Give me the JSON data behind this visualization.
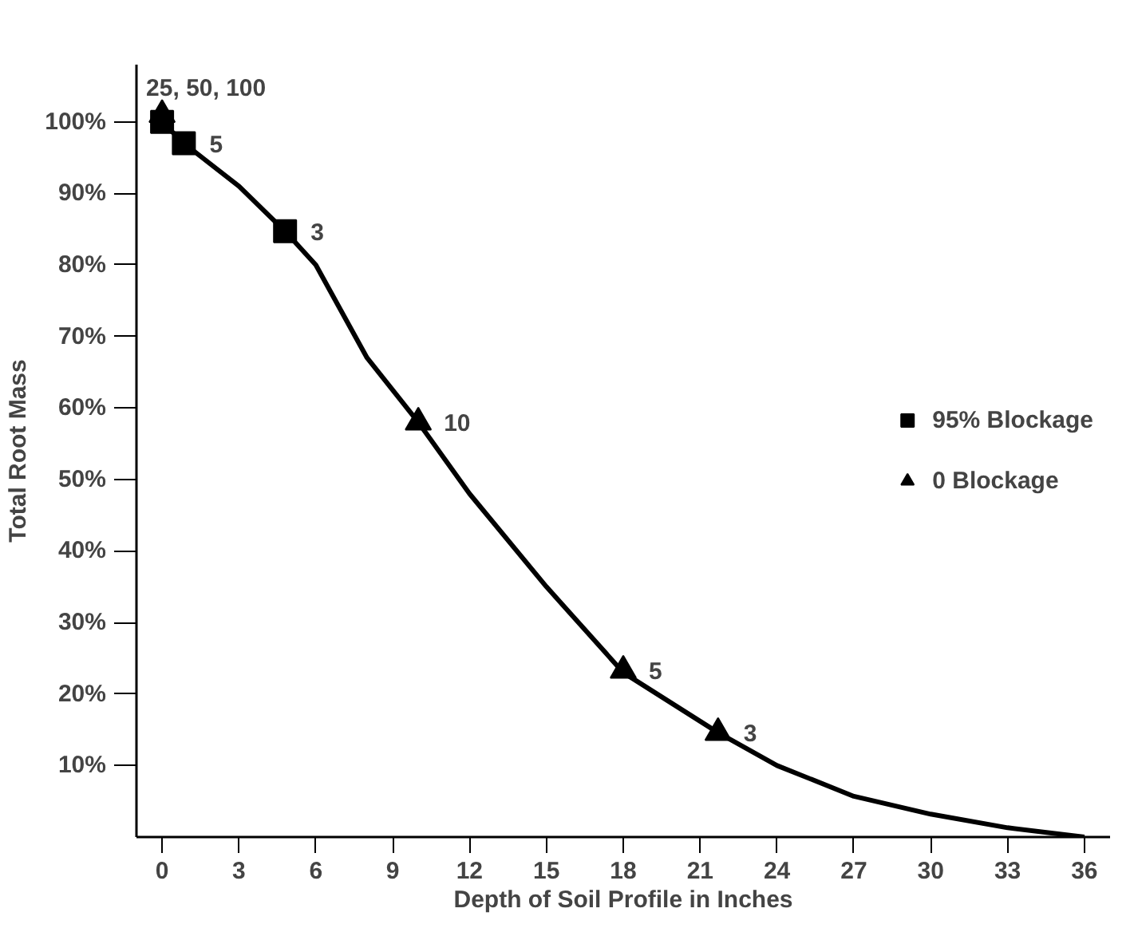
{
  "chart_data": {
    "type": "line",
    "xlabel": "Depth of Soil Profile in Inches",
    "ylabel": "Total Root Mass",
    "xlim": [
      -1,
      37
    ],
    "ylim": [
      0,
      108
    ],
    "xticks": [
      0,
      3,
      6,
      9,
      12,
      15,
      18,
      21,
      24,
      27,
      30,
      33,
      36
    ],
    "yticks": [
      {
        "value": 10,
        "label": "10%"
      },
      {
        "value": 20,
        "label": "20%"
      },
      {
        "value": 30,
        "label": "30%"
      },
      {
        "value": 40,
        "label": "40%"
      },
      {
        "value": 50,
        "label": "50%"
      },
      {
        "value": 60,
        "label": "60%"
      },
      {
        "value": 70,
        "label": "70%"
      },
      {
        "value": 80,
        "label": "80%"
      },
      {
        "value": 90,
        "label": "90%"
      },
      {
        "value": 100,
        "label": "100%"
      }
    ],
    "grid": false,
    "legend": "right",
    "series": [
      {
        "color": "#000000",
        "marker": "none",
        "line_style": "solid",
        "x": [
          0,
          0.85,
          3,
          4.8,
          6,
          8,
          10,
          12,
          15,
          18,
          21.7,
          24,
          27,
          30,
          33,
          36
        ],
        "values": [
          100,
          97,
          91,
          84.7,
          80,
          67,
          58,
          48,
          35,
          23,
          14.6,
          10,
          5.7,
          3.2,
          1.3,
          0
        ]
      },
      {
        "type": "scatter",
        "name": "95% Blockage",
        "color": "#000000",
        "marker": "square",
        "x": [
          0,
          0.85,
          4.8
        ],
        "values": [
          100,
          97,
          84.7
        ]
      },
      {
        "type": "scatter",
        "name": "0 Blockage",
        "color": "#000000",
        "marker": "triangle",
        "x": [
          0,
          10,
          18,
          21.7
        ],
        "values": [
          101,
          58,
          23.3,
          14.6
        ]
      }
    ],
    "annotations": [
      {
        "text": "25, 50, 100",
        "x": 0,
        "y": 101
      },
      {
        "text": "5",
        "x": 0.85,
        "y": 97
      },
      {
        "text": "3",
        "x": 4.8,
        "y": 84.7
      },
      {
        "text": "10",
        "x": 10,
        "y": 58
      },
      {
        "text": "5",
        "x": 18,
        "y": 23.3
      },
      {
        "text": "3",
        "x": 21.7,
        "y": 14.6
      }
    ]
  }
}
